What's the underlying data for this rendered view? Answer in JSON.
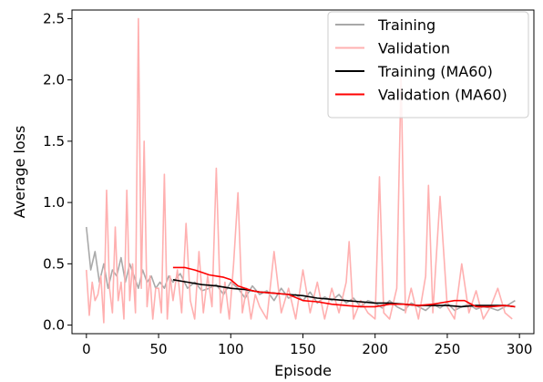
{
  "chart_data": {
    "type": "line",
    "title": "",
    "xlabel": "Episode",
    "ylabel": "Average loss",
    "xlim": [
      -10,
      310
    ],
    "ylim": [
      -0.07,
      2.57
    ],
    "xticks": [
      0,
      50,
      100,
      150,
      200,
      250,
      300
    ],
    "yticks": [
      0.0,
      0.5,
      1.0,
      1.5,
      2.0,
      2.5
    ],
    "xtick_labels": [
      "0",
      "50",
      "100",
      "150",
      "200",
      "250",
      "300"
    ],
    "ytick_labels": [
      "0.0",
      "0.5",
      "1.0",
      "1.5",
      "2.0",
      "2.5"
    ],
    "grid": false,
    "legend_position": "upper-right",
    "series": [
      {
        "name": "Training",
        "color": "#a9a9a9",
        "x": [
          0,
          3,
          6,
          9,
          12,
          15,
          18,
          21,
          24,
          27,
          30,
          33,
          36,
          39,
          42,
          45,
          48,
          51,
          54,
          57,
          60,
          65,
          70,
          75,
          80,
          85,
          90,
          95,
          100,
          105,
          110,
          115,
          120,
          125,
          130,
          135,
          140,
          145,
          150,
          155,
          160,
          165,
          170,
          175,
          180,
          185,
          190,
          195,
          200,
          205,
          210,
          215,
          220,
          225,
          230,
          235,
          240,
          245,
          250,
          255,
          260,
          265,
          270,
          275,
          280,
          285,
          290,
          297
        ],
        "y": [
          0.8,
          0.45,
          0.6,
          0.35,
          0.5,
          0.3,
          0.45,
          0.4,
          0.55,
          0.35,
          0.5,
          0.4,
          0.3,
          0.45,
          0.35,
          0.4,
          0.3,
          0.35,
          0.3,
          0.4,
          0.35,
          0.42,
          0.3,
          0.35,
          0.28,
          0.3,
          0.33,
          0.25,
          0.35,
          0.3,
          0.22,
          0.32,
          0.25,
          0.28,
          0.2,
          0.3,
          0.22,
          0.25,
          0.2,
          0.27,
          0.18,
          0.23,
          0.2,
          0.25,
          0.18,
          0.22,
          0.15,
          0.2,
          0.18,
          0.14,
          0.2,
          0.15,
          0.12,
          0.18,
          0.15,
          0.12,
          0.17,
          0.14,
          0.18,
          0.12,
          0.15,
          0.17,
          0.13,
          0.15,
          0.14,
          0.12,
          0.15,
          0.2
        ]
      },
      {
        "name": "Validation",
        "color": "#ffb0b0",
        "x": [
          0,
          2,
          4,
          6,
          8,
          10,
          12,
          14,
          16,
          18,
          20,
          22,
          24,
          26,
          28,
          30,
          32,
          34,
          36,
          38,
          40,
          42,
          44,
          46,
          48,
          50,
          52,
          54,
          56,
          58,
          60,
          63,
          66,
          69,
          72,
          75,
          78,
          81,
          84,
          87,
          90,
          93,
          96,
          99,
          102,
          105,
          108,
          111,
          114,
          117,
          120,
          125,
          130,
          135,
          140,
          145,
          150,
          155,
          160,
          165,
          170,
          175,
          180,
          182,
          185,
          190,
          195,
          200,
          203,
          206,
          210,
          215,
          218,
          221,
          225,
          230,
          235,
          237,
          240,
          245,
          250,
          255,
          260,
          265,
          270,
          275,
          280,
          285,
          290,
          295
        ],
        "y": [
          0.45,
          0.08,
          0.35,
          0.2,
          0.25,
          0.4,
          0.02,
          1.1,
          0.3,
          0.1,
          0.8,
          0.2,
          0.35,
          0.05,
          1.1,
          0.2,
          0.5,
          0.1,
          2.5,
          0.3,
          1.5,
          0.15,
          0.4,
          0.05,
          0.3,
          0.3,
          0.1,
          1.23,
          0.05,
          0.4,
          0.2,
          0.45,
          0.1,
          0.83,
          0.2,
          0.05,
          0.6,
          0.1,
          0.4,
          0.15,
          1.28,
          0.1,
          0.35,
          0.05,
          0.5,
          1.08,
          0.1,
          0.3,
          0.05,
          0.25,
          0.15,
          0.05,
          0.6,
          0.1,
          0.3,
          0.05,
          0.45,
          0.1,
          0.35,
          0.05,
          0.3,
          0.1,
          0.35,
          0.68,
          0.05,
          0.2,
          0.1,
          0.05,
          1.21,
          0.1,
          0.05,
          0.3,
          2.04,
          0.1,
          0.3,
          0.05,
          0.4,
          1.14,
          0.1,
          1.05,
          0.15,
          0.05,
          0.5,
          0.1,
          0.28,
          0.05,
          0.15,
          0.3,
          0.1,
          0.05
        ]
      },
      {
        "name": "Training (MA60)",
        "color": "#000000",
        "x": [
          60,
          70,
          80,
          90,
          100,
          110,
          120,
          130,
          140,
          150,
          160,
          170,
          180,
          190,
          200,
          210,
          220,
          230,
          240,
          250,
          260,
          270,
          280,
          290,
          297
        ],
        "y": [
          0.37,
          0.35,
          0.33,
          0.32,
          0.3,
          0.29,
          0.27,
          0.26,
          0.25,
          0.24,
          0.22,
          0.21,
          0.2,
          0.19,
          0.18,
          0.18,
          0.17,
          0.16,
          0.16,
          0.16,
          0.15,
          0.16,
          0.16,
          0.16,
          0.15
        ]
      },
      {
        "name": "Validation (MA60)",
        "color": "#ff0000",
        "x": [
          60,
          68,
          75,
          80,
          85,
          90,
          95,
          100,
          105,
          110,
          115,
          120,
          130,
          140,
          150,
          160,
          170,
          180,
          190,
          200,
          210,
          220,
          230,
          240,
          250,
          255,
          262,
          270,
          280,
          290,
          297
        ],
        "y": [
          0.47,
          0.47,
          0.45,
          0.43,
          0.41,
          0.4,
          0.39,
          0.37,
          0.32,
          0.3,
          0.28,
          0.27,
          0.26,
          0.25,
          0.2,
          0.19,
          0.17,
          0.16,
          0.15,
          0.15,
          0.17,
          0.17,
          0.16,
          0.17,
          0.19,
          0.2,
          0.2,
          0.15,
          0.15,
          0.16,
          0.15
        ]
      }
    ]
  }
}
